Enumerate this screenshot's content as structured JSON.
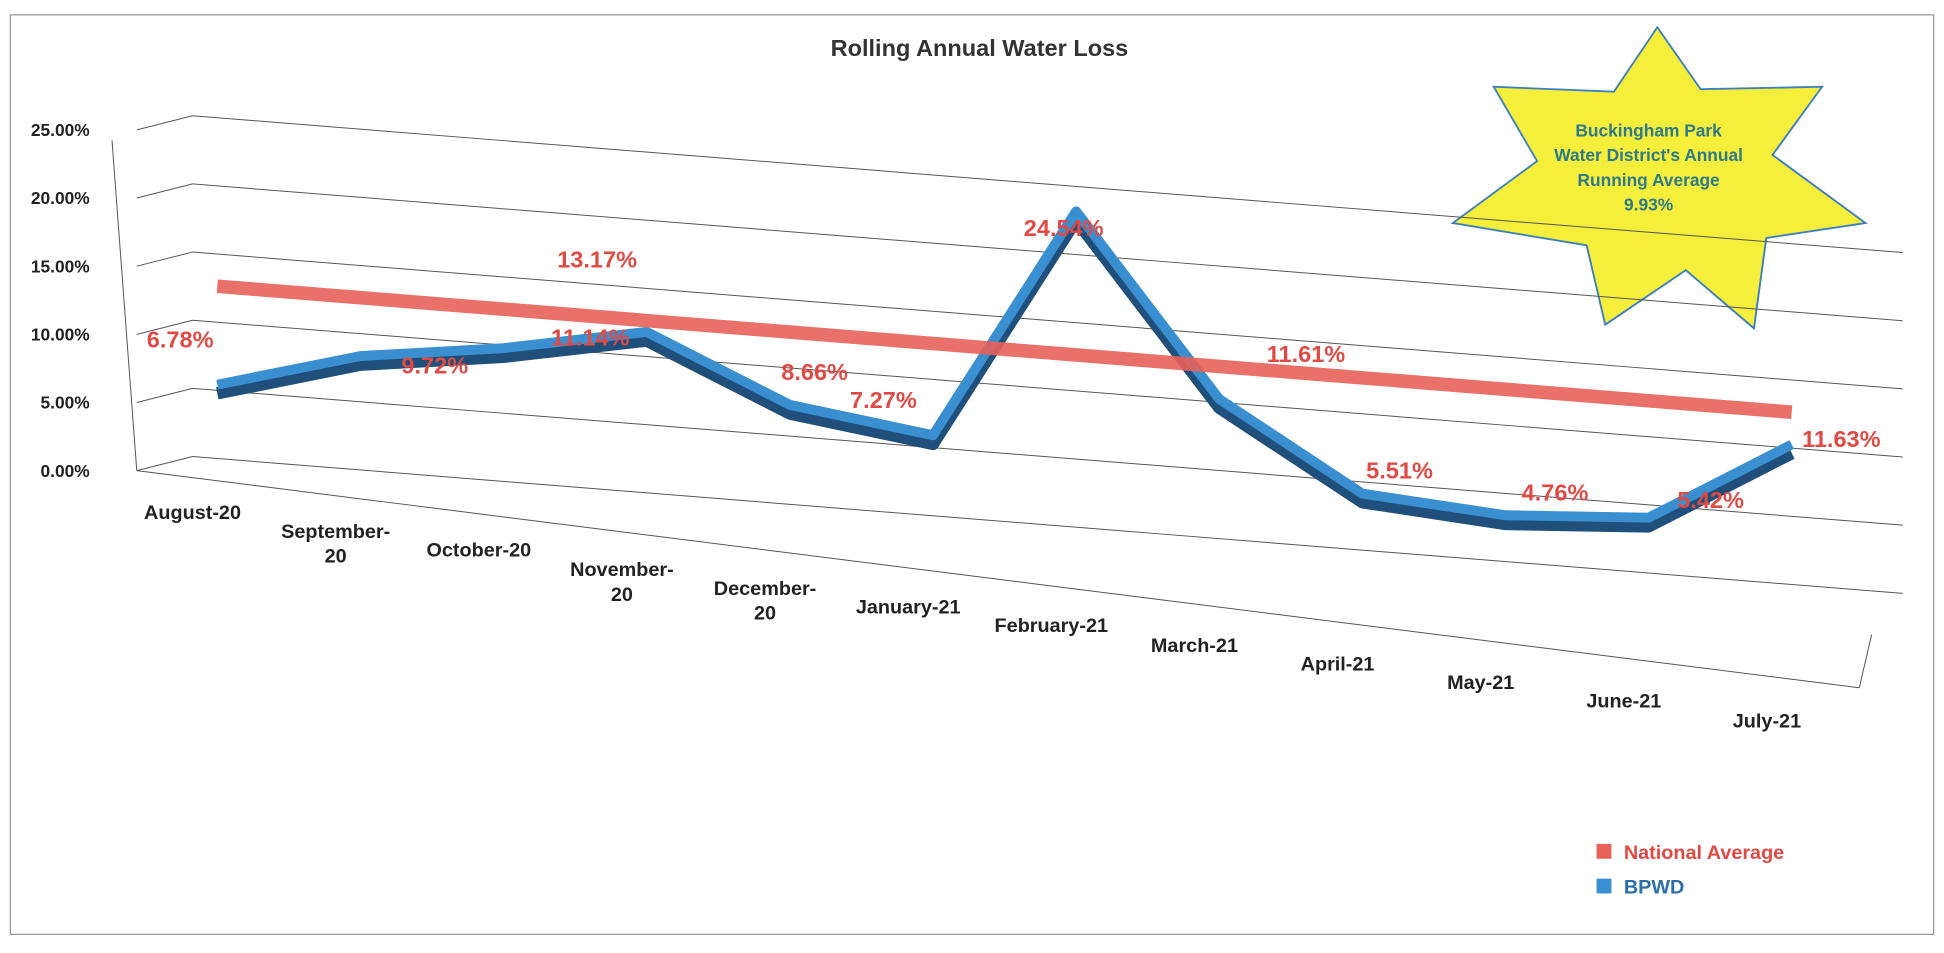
{
  "chart_data": {
    "type": "line",
    "title": "Rolling Annual Water Loss",
    "categories": [
      "August-20",
      "September-20",
      "October-20",
      "November-20",
      "December-20",
      "January-21",
      "February-21",
      "March-21",
      "April-21",
      "May-21",
      "June-21",
      "July-21"
    ],
    "series": [
      {
        "name": "National Average",
        "color": "#e8605a",
        "values": [
          14,
          14,
          14,
          14,
          14,
          14,
          14,
          14,
          14,
          14,
          14,
          14
        ]
      },
      {
        "name": "BPWD",
        "color": "#3a8fd0",
        "values": [
          6.78,
          9.72,
          11.14,
          13.17,
          8.66,
          7.27,
          24.54,
          11.61,
          5.51,
          4.76,
          5.42,
          11.63
        ],
        "value_labels": [
          "6.78%",
          "9.72%",
          "11.14%",
          "13.17%",
          "8.66%",
          "7.27%",
          "24.54%",
          "11.61%",
          "5.51%",
          "4.76%",
          "5.42%",
          "11.63%"
        ]
      }
    ],
    "ylim": [
      0,
      25
    ],
    "yticks": [
      {
        "value": 0,
        "label": "0.00%"
      },
      {
        "value": 5,
        "label": "5.00%"
      },
      {
        "value": 10,
        "label": "10.00%"
      },
      {
        "value": 15,
        "label": "15.00%"
      },
      {
        "value": 20,
        "label": "20.00%"
      },
      {
        "value": 25,
        "label": "25.00%"
      }
    ],
    "grid": true,
    "legend": "lower right",
    "annotation": [
      "Buckingham Park",
      "Water District's Annual",
      "Running Average",
      "9.93%"
    ]
  }
}
